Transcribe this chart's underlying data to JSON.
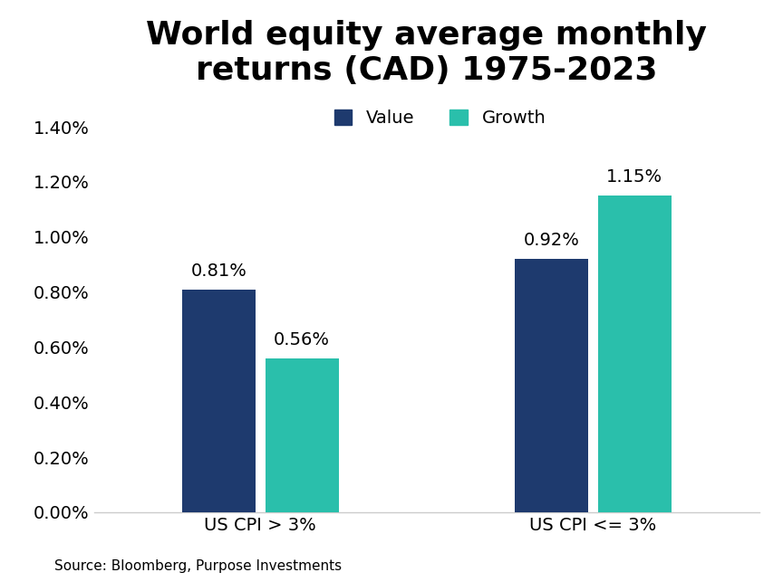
{
  "title": "World equity average monthly\nreturns (CAD) 1975-2023",
  "categories": [
    "US CPI > 3%",
    "US CPI <= 3%"
  ],
  "value_data": [
    0.0081,
    0.0092
  ],
  "growth_data": [
    0.0056,
    0.0115
  ],
  "value_labels": [
    "0.81%",
    "0.92%"
  ],
  "growth_labels": [
    "0.56%",
    "1.15%"
  ],
  "value_color": "#1e3a6e",
  "growth_color": "#2abfab",
  "legend_value": "Value",
  "legend_growth": "Growth",
  "ylim": [
    0,
    0.0148
  ],
  "yticks": [
    0.0,
    0.002,
    0.004,
    0.006,
    0.008,
    0.01,
    0.012,
    0.014
  ],
  "ytick_labels": [
    "0.00%",
    "0.20%",
    "0.40%",
    "0.60%",
    "0.80%",
    "1.00%",
    "1.20%",
    "1.40%"
  ],
  "source_text": "Source: Bloomberg, Purpose Investments",
  "background_color": "#ffffff",
  "title_fontsize": 26,
  "label_fontsize": 14,
  "tick_fontsize": 14,
  "legend_fontsize": 14,
  "bar_width": 0.22,
  "xlim": [
    -0.5,
    1.5
  ]
}
